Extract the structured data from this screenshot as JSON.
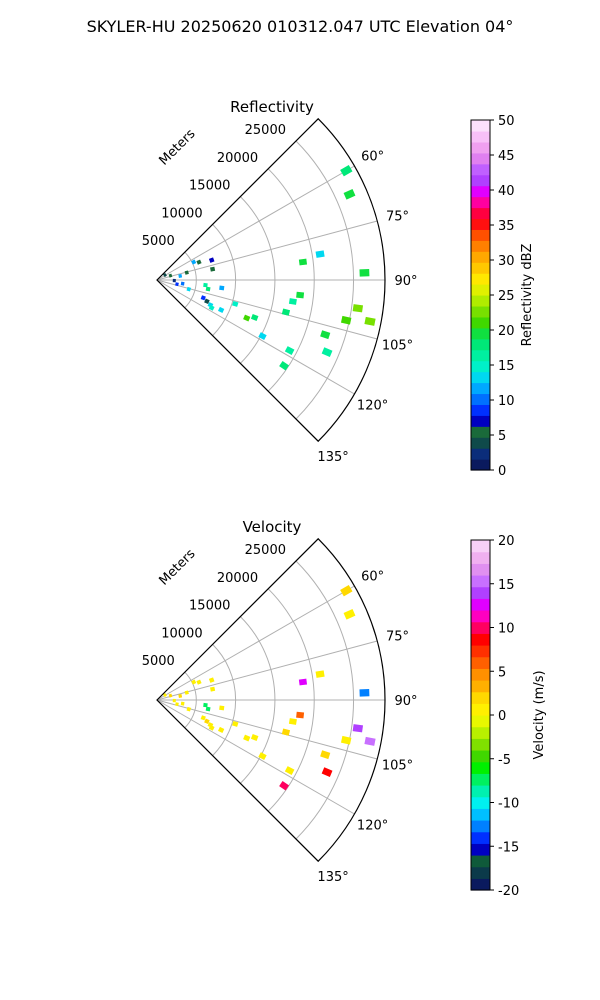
{
  "figure": {
    "suptitle": "SKYLER-HU  20250620  010312.047 UTC Elevation 04°"
  },
  "chart_data": [
    {
      "type": "polar-sector",
      "title": "Reflectivity",
      "radial_label": "Meters",
      "radial_ticks": [
        5000,
        10000,
        15000,
        20000,
        25000
      ],
      "radial_max": 29000,
      "angle_ticks_deg": [
        60,
        75,
        90,
        105,
        120,
        135
      ],
      "angle_tick_labels": [
        "60°",
        "75°",
        "90°",
        "105°",
        "120°",
        "135°"
      ],
      "angle_range_deg": [
        45,
        135
      ],
      "grid": true,
      "colorbar": {
        "label": "Reflectivity dBZ",
        "min": 0,
        "max": 50,
        "ticks": [
          0,
          5,
          10,
          15,
          20,
          25,
          30,
          35,
          40,
          45,
          50
        ],
        "colors": [
          "#0a1a5e",
          "#0b2d7a",
          "#0f4a4a",
          "#1a6a3a",
          "#0000c0",
          "#0030ff",
          "#0070ff",
          "#00a8ff",
          "#00d8f0",
          "#00f0c8",
          "#00f0a0",
          "#00e878",
          "#10e040",
          "#40d800",
          "#78e000",
          "#b0ec00",
          "#e0f000",
          "#ffe800",
          "#ffc800",
          "#ffa800",
          "#ff8000",
          "#ff5000",
          "#ff1010",
          "#ff0040",
          "#ff00a0",
          "#e000ff",
          "#b040ff",
          "#c060ff",
          "#e080f0",
          "#f0a0f0",
          "#f8c0f8",
          "#fce0fc"
        ]
      },
      "echoes": [
        {
          "range": 1200,
          "azimuth": 58,
          "value": 4
        },
        {
          "range": 1800,
          "azimuth": 72,
          "value": 6
        },
        {
          "range": 2200,
          "azimuth": 92,
          "value": 3
        },
        {
          "range": 2600,
          "azimuth": 102,
          "value": 8
        },
        {
          "range": 3000,
          "azimuth": 80,
          "value": 12
        },
        {
          "range": 3300,
          "azimuth": 98,
          "value": 10
        },
        {
          "range": 3900,
          "azimuth": 76,
          "value": 5
        },
        {
          "range": 4200,
          "azimuth": 106,
          "value": 14
        },
        {
          "range": 5200,
          "azimuth": 64,
          "value": 12
        },
        {
          "range": 5800,
          "azimuth": 67,
          "value": 5
        },
        {
          "range": 6300,
          "azimuth": 111,
          "value": 9
        },
        {
          "range": 6900,
          "azimuth": 113,
          "value": 4
        },
        {
          "range": 7500,
          "azimuth": 115,
          "value": 13
        },
        {
          "range": 7800,
          "azimuth": 117,
          "value": 15
        },
        {
          "range": 6200,
          "azimuth": 96,
          "value": 17
        },
        {
          "range": 6600,
          "azimuth": 100,
          "value": 18
        },
        {
          "range": 7200,
          "azimuth": 79,
          "value": 6
        },
        {
          "range": 7400,
          "azimuth": 70,
          "value": 7
        },
        {
          "range": 8300,
          "azimuth": 97,
          "value": 12
        },
        {
          "range": 9000,
          "azimuth": 115,
          "value": 14
        },
        {
          "range": 10400,
          "azimuth": 107,
          "value": 15
        },
        {
          "range": 12400,
          "azimuth": 113,
          "value": 21
        },
        {
          "range": 13300,
          "azimuth": 111,
          "value": 18
        },
        {
          "range": 15200,
          "azimuth": 118,
          "value": 14
        },
        {
          "range": 16900,
          "azimuth": 104,
          "value": 18
        },
        {
          "range": 17500,
          "azimuth": 99,
          "value": 17
        },
        {
          "range": 18300,
          "azimuth": 96,
          "value": 19
        },
        {
          "range": 19100,
          "azimuth": 118,
          "value": 16
        },
        {
          "range": 19500,
          "azimuth": 124,
          "value": 18
        },
        {
          "range": 18700,
          "azimuth": 83,
          "value": 19
        },
        {
          "range": 21000,
          "azimuth": 81,
          "value": 14
        },
        {
          "range": 22500,
          "azimuth": 108,
          "value": 19
        },
        {
          "range": 23500,
          "azimuth": 113,
          "value": 17
        },
        {
          "range": 24600,
          "azimuth": 102,
          "value": 21
        },
        {
          "range": 25800,
          "azimuth": 98,
          "value": 22
        },
        {
          "range": 26400,
          "azimuth": 88,
          "value": 19
        },
        {
          "range": 27600,
          "azimuth": 101,
          "value": 22
        },
        {
          "range": 26800,
          "azimuth": 66,
          "value": 19
        },
        {
          "range": 27800,
          "azimuth": 60,
          "value": 18
        }
      ]
    },
    {
      "type": "polar-sector",
      "title": "Velocity",
      "radial_label": "Meters",
      "radial_ticks": [
        5000,
        10000,
        15000,
        20000,
        25000
      ],
      "radial_max": 29000,
      "angle_ticks_deg": [
        60,
        75,
        90,
        105,
        120,
        135
      ],
      "angle_tick_labels": [
        "60°",
        "75°",
        "90°",
        "105°",
        "120°",
        "135°"
      ],
      "angle_range_deg": [
        45,
        135
      ],
      "grid": true,
      "colorbar": {
        "label": "Velocity (m/s)",
        "min": -20,
        "max": 20,
        "ticks": [
          -20,
          -15,
          -10,
          -5,
          0,
          5,
          10,
          15,
          20
        ],
        "colors": [
          "#0a1a5e",
          "#0b3a4a",
          "#0f5a3a",
          "#0000c0",
          "#0030ff",
          "#0080ff",
          "#00c0ff",
          "#00f0f0",
          "#00f0b0",
          "#00f060",
          "#00f000",
          "#40d800",
          "#80e000",
          "#b8f000",
          "#e8f800",
          "#fff000",
          "#ffd800",
          "#ffb000",
          "#ff9000",
          "#ff6000",
          "#ff3000",
          "#ff0000",
          "#ff0060",
          "#ff00c0",
          "#e000ff",
          "#b040ff",
          "#c870ff",
          "#e090f0",
          "#f0b0f0",
          "#f8d0f8"
        ]
      },
      "echoes": [
        {
          "range": 1200,
          "azimuth": 58,
          "value": 1
        },
        {
          "range": 1800,
          "azimuth": 72,
          "value": 2
        },
        {
          "range": 2200,
          "azimuth": 92,
          "value": 0
        },
        {
          "range": 2600,
          "azimuth": 102,
          "value": 1
        },
        {
          "range": 3000,
          "azimuth": 80,
          "value": 2
        },
        {
          "range": 3300,
          "azimuth": 98,
          "value": 1
        },
        {
          "range": 3900,
          "azimuth": 76,
          "value": 1
        },
        {
          "range": 4200,
          "azimuth": 106,
          "value": 0
        },
        {
          "range": 5200,
          "azimuth": 64,
          "value": 1
        },
        {
          "range": 5800,
          "azimuth": 67,
          "value": 0
        },
        {
          "range": 6300,
          "azimuth": 111,
          "value": 1
        },
        {
          "range": 6900,
          "azimuth": 113,
          "value": 2
        },
        {
          "range": 7500,
          "azimuth": 115,
          "value": 1
        },
        {
          "range": 7800,
          "azimuth": 117,
          "value": 0
        },
        {
          "range": 6200,
          "azimuth": 96,
          "value": -7
        },
        {
          "range": 6600,
          "azimuth": 100,
          "value": -7
        },
        {
          "range": 7200,
          "azimuth": 79,
          "value": 1
        },
        {
          "range": 7400,
          "azimuth": 70,
          "value": 0
        },
        {
          "range": 8300,
          "azimuth": 97,
          "value": 1
        },
        {
          "range": 9000,
          "azimuth": 115,
          "value": 1
        },
        {
          "range": 10400,
          "azimuth": 107,
          "value": 1
        },
        {
          "range": 12400,
          "azimuth": 113,
          "value": 0
        },
        {
          "range": 13300,
          "azimuth": 111,
          "value": 1
        },
        {
          "range": 15200,
          "azimuth": 118,
          "value": 1
        },
        {
          "range": 16900,
          "azimuth": 104,
          "value": 2
        },
        {
          "range": 17500,
          "azimuth": 99,
          "value": 1
        },
        {
          "range": 18300,
          "azimuth": 96,
          "value": 6
        },
        {
          "range": 19100,
          "azimuth": 118,
          "value": 1
        },
        {
          "range": 19500,
          "azimuth": 124,
          "value": 10
        },
        {
          "range": 18700,
          "azimuth": 83,
          "value": 13
        },
        {
          "range": 21000,
          "azimuth": 81,
          "value": 0
        },
        {
          "range": 22500,
          "azimuth": 108,
          "value": 2
        },
        {
          "range": 23500,
          "azimuth": 113,
          "value": 8
        },
        {
          "range": 24600,
          "azimuth": 102,
          "value": 0
        },
        {
          "range": 25800,
          "azimuth": 98,
          "value": 14
        },
        {
          "range": 26400,
          "azimuth": 88,
          "value": -13
        },
        {
          "range": 27600,
          "azimuth": 101,
          "value": 15
        },
        {
          "range": 26800,
          "azimuth": 66,
          "value": 1
        },
        {
          "range": 27800,
          "azimuth": 60,
          "value": 2
        }
      ]
    }
  ]
}
